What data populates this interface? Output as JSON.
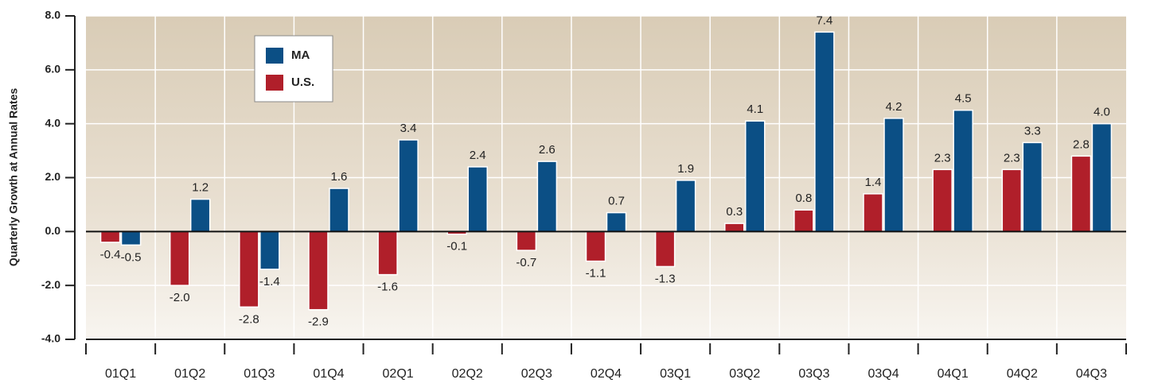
{
  "chart_data": {
    "type": "bar",
    "y_label": "Quarterly Growth at Annual Rates",
    "categories": [
      "01Q1",
      "01Q2",
      "01Q3",
      "01Q4",
      "02Q1",
      "02Q2",
      "02Q3",
      "02Q4",
      "03Q1",
      "03Q2",
      "03Q3",
      "03Q4",
      "04Q1",
      "04Q2",
      "04Q3"
    ],
    "series": [
      {
        "name": "U.S.",
        "color": "#b01f2a",
        "values": [
          -0.4,
          -2.0,
          -2.8,
          -2.9,
          -1.6,
          -0.1,
          -0.7,
          -1.1,
          -1.3,
          0.3,
          0.8,
          1.4,
          2.3,
          2.3,
          2.8
        ],
        "value_labels": [
          "-0.4",
          "-2.0",
          "-2.8",
          "-2.9",
          "-1.6",
          "-0.1",
          "-0.7",
          "-1.1",
          "-1.3",
          "0.3",
          "0.8",
          "1.4",
          "2.3",
          "2.3",
          "2.8"
        ]
      },
      {
        "name": "MA",
        "color": "#0b4f85",
        "values": [
          -0.5,
          1.2,
          -1.4,
          1.6,
          3.4,
          2.4,
          2.6,
          0.7,
          1.9,
          4.1,
          7.4,
          4.2,
          4.5,
          3.3,
          4.0
        ],
        "value_labels": [
          "-0.5",
          "1.2",
          "-1.4",
          "1.6",
          "3.4",
          "2.4",
          "2.6",
          "0.7",
          "1.9",
          "4.1",
          "7.4",
          "4.2",
          "4.5",
          "3.3",
          "4.0"
        ]
      }
    ],
    "ylim": [
      -4,
      8
    ],
    "yticks": [
      {
        "value": -4,
        "label": "-4.0"
      },
      {
        "value": -2,
        "label": "-2.0"
      },
      {
        "value": 0,
        "label": "0.0"
      },
      {
        "value": 2,
        "label": "2.0"
      },
      {
        "value": 4,
        "label": "4.0"
      },
      {
        "value": 6,
        "label": "6.0"
      },
      {
        "value": 8,
        "label": "8.0"
      }
    ],
    "grid": true
  }
}
